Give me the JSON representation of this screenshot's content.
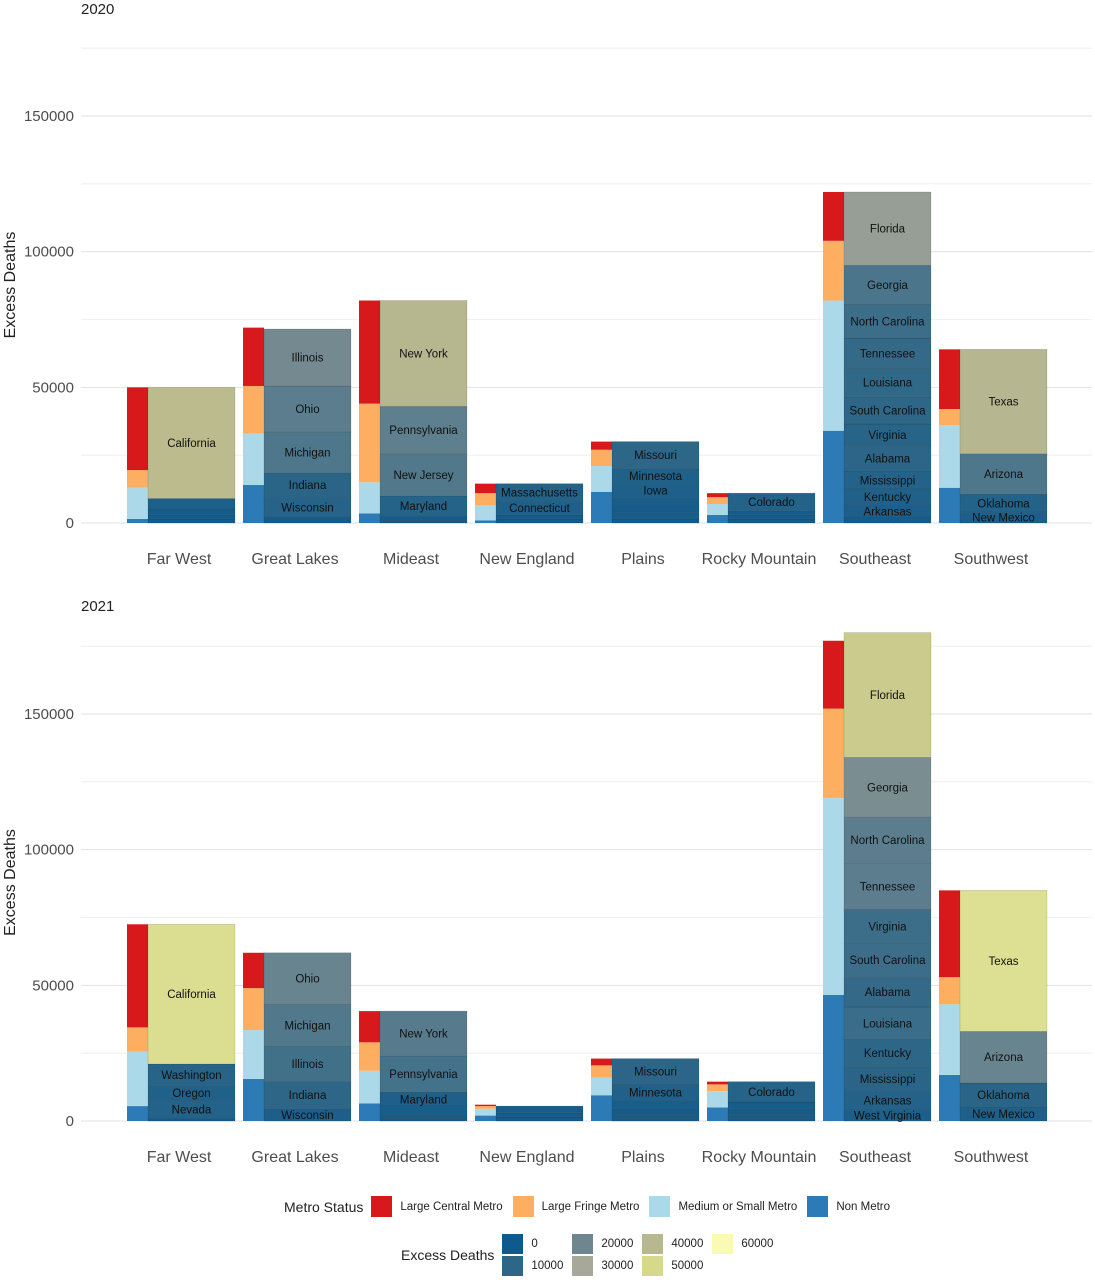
{
  "chart_data": [
    {
      "type": "bar",
      "title": "2020",
      "ylabel": "Excess Deaths",
      "ylim": [
        0,
        175000
      ],
      "yticks": [
        0,
        50000,
        100000,
        150000
      ],
      "ytick_labels": [
        "0",
        "50000",
        "100000",
        "150000"
      ],
      "categories": [
        "Far West",
        "Great Lakes",
        "Mideast",
        "New England",
        "Plains",
        "Rocky Mountain",
        "Southeast",
        "Southwest"
      ],
      "metro": [
        {
          "region": "Far West",
          "Non Metro": 1500,
          "Medium or Small Metro": 11500,
          "Large Fringe Metro": 6500,
          "Large Central Metro": 30500
        },
        {
          "region": "Great Lakes",
          "Non Metro": 14000,
          "Medium or Small Metro": 19000,
          "Large Fringe Metro": 17500,
          "Large Central Metro": 21500
        },
        {
          "region": "Mideast",
          "Non Metro": 3500,
          "Medium or Small Metro": 11500,
          "Large Fringe Metro": 29000,
          "Large Central Metro": 38000
        },
        {
          "region": "New England",
          "Non Metro": 1000,
          "Medium or Small Metro": 5500,
          "Large Fringe Metro": 4500,
          "Large Central Metro": 3500
        },
        {
          "region": "Plains",
          "Non Metro": 11500,
          "Medium or Small Metro": 9500,
          "Large Fringe Metro": 6000,
          "Large Central Metro": 3000
        },
        {
          "region": "Rocky Mountain",
          "Non Metro": 3000,
          "Medium or Small Metro": 4000,
          "Large Fringe Metro": 2500,
          "Large Central Metro": 1500
        },
        {
          "region": "Southeast",
          "Non Metro": 34000,
          "Medium or Small Metro": 48000,
          "Large Fringe Metro": 22000,
          "Large Central Metro": 18000
        },
        {
          "region": "Southwest",
          "Non Metro": 13000,
          "Medium or Small Metro": 23000,
          "Large Fringe Metro": 6000,
          "Large Central Metro": 22000
        }
      ],
      "states": [
        {
          "region": "Far West",
          "items": [
            [
              "",
              1500
            ],
            [
              "",
              1500
            ],
            [
              "",
              2000
            ],
            [
              "",
              4000
            ],
            [
              "California",
              41000
            ]
          ]
        },
        {
          "region": "Great Lakes",
          "items": [
            [
              "",
              2000
            ],
            [
              "Wisconsin",
              7500
            ],
            [
              "Indiana",
              9000
            ],
            [
              "Michigan",
              15000
            ],
            [
              "Ohio",
              17000
            ],
            [
              "Illinois",
              21000
            ]
          ]
        },
        {
          "region": "Mideast",
          "items": [
            [
              "",
              1000
            ],
            [
              "",
              1500
            ],
            [
              "Maryland",
              7500
            ],
            [
              "New Jersey",
              15500
            ],
            [
              "Pennsylvania",
              17500
            ],
            [
              "New York",
              39000
            ]
          ]
        },
        {
          "region": "New England",
          "items": [
            [
              "",
              500
            ],
            [
              "",
              1000
            ],
            [
              "",
              1500
            ],
            [
              "Connecticut",
              5000
            ],
            [
              "Massachusetts",
              6500
            ]
          ]
        },
        {
          "region": "Plains",
          "items": [
            [
              "",
              1500
            ],
            [
              "",
              2500
            ],
            [
              "",
              2500
            ],
            [
              "",
              3000
            ],
            [
              "Iowa",
              5000
            ],
            [
              "Minnesota",
              5500
            ],
            [
              "Missouri",
              10000
            ]
          ]
        },
        {
          "region": "Rocky Mountain",
          "items": [
            [
              "",
              500
            ],
            [
              "",
              1000
            ],
            [
              "",
              1500
            ],
            [
              "",
              1500
            ],
            [
              "Colorado",
              6500
            ]
          ]
        },
        {
          "region": "Southeast",
          "items": [
            [
              "",
              2000
            ],
            [
              "Arkansas",
              4500
            ],
            [
              "Kentucky",
              6000
            ],
            [
              "Mississippi",
              6500
            ],
            [
              "Alabama",
              9500
            ],
            [
              "Virginia",
              8000
            ],
            [
              "South Carolina",
              10000
            ],
            [
              "Louisiana",
              10500
            ],
            [
              "Tennessee",
              11000
            ],
            [
              "North Carolina",
              12500
            ],
            [
              "Georgia",
              14500
            ],
            [
              "Florida",
              27000
            ]
          ]
        },
        {
          "region": "Southwest",
          "items": [
            [
              "New Mexico",
              4000
            ],
            [
              "Oklahoma",
              6500
            ],
            [
              "Arizona",
              15000
            ],
            [
              "Texas",
              38500
            ]
          ]
        }
      ]
    },
    {
      "type": "bar",
      "title": "2021",
      "ylabel": "Excess Deaths",
      "ylim": [
        0,
        175000
      ],
      "yticks": [
        0,
        50000,
        100000,
        150000
      ],
      "ytick_labels": [
        "0",
        "50000",
        "100000",
        "150000"
      ],
      "categories": [
        "Far West",
        "Great Lakes",
        "Mideast",
        "New England",
        "Plains",
        "Rocky Mountain",
        "Southeast",
        "Southwest"
      ],
      "metro": [
        {
          "region": "Far West",
          "Non Metro": 5500,
          "Medium or Small Metro": 20000,
          "Large Fringe Metro": 9000,
          "Large Central Metro": 38000
        },
        {
          "region": "Great Lakes",
          "Non Metro": 15500,
          "Medium or Small Metro": 18000,
          "Large Fringe Metro": 15500,
          "Large Central Metro": 13000
        },
        {
          "region": "Mideast",
          "Non Metro": 6500,
          "Medium or Small Metro": 12000,
          "Large Fringe Metro": 10500,
          "Large Central Metro": 11500
        },
        {
          "region": "New England",
          "Non Metro": 2000,
          "Medium or Small Metro": 2500,
          "Large Fringe Metro": 1000,
          "Large Central Metro": 500
        },
        {
          "region": "Plains",
          "Non Metro": 9500,
          "Medium or Small Metro": 6500,
          "Large Fringe Metro": 4500,
          "Large Central Metro": 2500
        },
        {
          "region": "Rocky Mountain",
          "Non Metro": 5000,
          "Medium or Small Metro": 6000,
          "Large Fringe Metro": 2500,
          "Large Central Metro": 1000
        },
        {
          "region": "Southeast",
          "Non Metro": 46500,
          "Medium or Small Metro": 72500,
          "Large Fringe Metro": 33000,
          "Large Central Metro": 25000
        },
        {
          "region": "Southwest",
          "Non Metro": 17000,
          "Medium or Small Metro": 26000,
          "Large Fringe Metro": 10000,
          "Large Central Metro": 32000
        }
      ],
      "states": [
        {
          "region": "Far West",
          "items": [
            [
              "",
              1000
            ],
            [
              "Nevada",
              6500
            ],
            [
              "Oregon",
              5500
            ],
            [
              "Washington",
              8000
            ],
            [
              "California",
              51500
            ]
          ]
        },
        {
          "region": "Great Lakes",
          "items": [
            [
              "Wisconsin",
              4500
            ],
            [
              "Indiana",
              10000
            ],
            [
              "Illinois",
              13000
            ],
            [
              "Michigan",
              15500
            ],
            [
              "Ohio",
              19000
            ]
          ]
        },
        {
          "region": "Mideast",
          "items": [
            [
              "",
              1000
            ],
            [
              "",
              1500
            ],
            [
              "",
              3000
            ],
            [
              "Maryland",
              5000
            ],
            [
              "Pennsylvania",
              13500
            ],
            [
              "New York",
              16500
            ]
          ]
        },
        {
          "region": "New England",
          "items": [
            [
              "",
              500
            ],
            [
              "",
              1000
            ],
            [
              "",
              1500
            ],
            [
              "",
              2500
            ]
          ]
        },
        {
          "region": "Plains",
          "items": [
            [
              "",
              1000
            ],
            [
              "",
              1500
            ],
            [
              "",
              2000
            ],
            [
              "",
              3000
            ],
            [
              "Minnesota",
              6000
            ],
            [
              "Missouri",
              9500
            ]
          ]
        },
        {
          "region": "Rocky Mountain",
          "items": [
            [
              "",
              1000
            ],
            [
              "",
              1500
            ],
            [
              "",
              2000
            ],
            [
              "",
              2500
            ],
            [
              "Colorado",
              7500
            ]
          ]
        },
        {
          "region": "Southeast",
          "items": [
            [
              "West Virginia",
              4000
            ],
            [
              "Arkansas",
              7000
            ],
            [
              "Mississippi",
              9000
            ],
            [
              "Kentucky",
              10000
            ],
            [
              "Louisiana",
              12000
            ],
            [
              "Alabama",
              11000
            ],
            [
              "South Carolina",
              12500
            ],
            [
              "Virginia",
              12500
            ],
            [
              "Tennessee",
              17000
            ],
            [
              "North Carolina",
              17000
            ],
            [
              "Georgia",
              22000
            ],
            [
              "Florida",
              46000
            ]
          ]
        },
        {
          "region": "Southwest",
          "items": [
            [
              "New Mexico",
              5000
            ],
            [
              "Oklahoma",
              9000
            ],
            [
              "Arizona",
              19000
            ],
            [
              "Texas",
              52000
            ]
          ]
        }
      ]
    }
  ],
  "legend_metro": {
    "title": "Metro Status",
    "items": [
      {
        "label": "Large Central Metro",
        "color": "#d7191c"
      },
      {
        "label": "Large Fringe Metro",
        "color": "#fdae61"
      },
      {
        "label": "Medium or Small Metro",
        "color": "#abd9e9"
      },
      {
        "label": "Non Metro",
        "color": "#2c7bb6"
      }
    ]
  },
  "legend_deaths": {
    "title": "Excess Deaths",
    "items": [
      {
        "label": "0",
        "color": "#0f5a8c"
      },
      {
        "label": "10000",
        "color": "#2d6687"
      },
      {
        "label": "20000",
        "color": "#6e878f"
      },
      {
        "label": "30000",
        "color": "#a8a898"
      },
      {
        "label": "40000",
        "color": "#b8b88e"
      },
      {
        "label": "50000",
        "color": "#d6d88a"
      },
      {
        "label": "60000",
        "color": "#fafab4"
      }
    ]
  }
}
